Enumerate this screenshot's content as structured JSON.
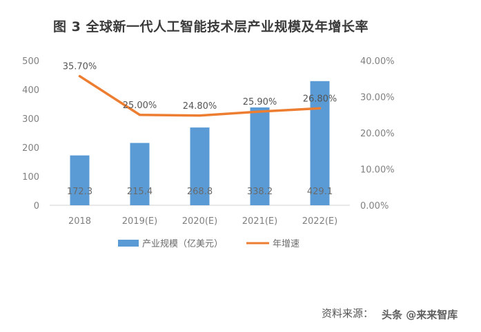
{
  "title": "图 3 全球新一代人工智能技术层产业规模及年增长率",
  "source_label": "资料来源：",
  "watermark": "头条 @来来智库",
  "chart_data": {
    "type": "bar",
    "categories": [
      "2018",
      "2019(E)",
      "2020(E)",
      "2021(E)",
      "2022(E)"
    ],
    "series": [
      {
        "name": "产业规模（亿美元）",
        "type": "bar",
        "axis": "left",
        "values": [
          172.3,
          215.4,
          268.8,
          338.2,
          429.1
        ],
        "labels": [
          "172.3",
          "215.4",
          "268.8",
          "338.2",
          "429.1"
        ],
        "color": "#5b9bd5"
      },
      {
        "name": "年增速",
        "type": "line",
        "axis": "right",
        "values": [
          35.7,
          25.0,
          24.8,
          25.9,
          26.8
        ],
        "labels": [
          "35.70%",
          "25.00%",
          "24.80%",
          "25.90%",
          "26.80%"
        ],
        "color": "#ed7d31"
      }
    ],
    "y_left": {
      "ylim": [
        0,
        500
      ],
      "ticks": [
        "0",
        "100",
        "200",
        "300",
        "400",
        "500"
      ]
    },
    "y_right": {
      "ylim": [
        0,
        40
      ],
      "ticks": [
        "0.00%",
        "10.00%",
        "20.00%",
        "30.00%",
        "40.00%"
      ]
    },
    "grid": false,
    "legend_position": "bottom"
  }
}
